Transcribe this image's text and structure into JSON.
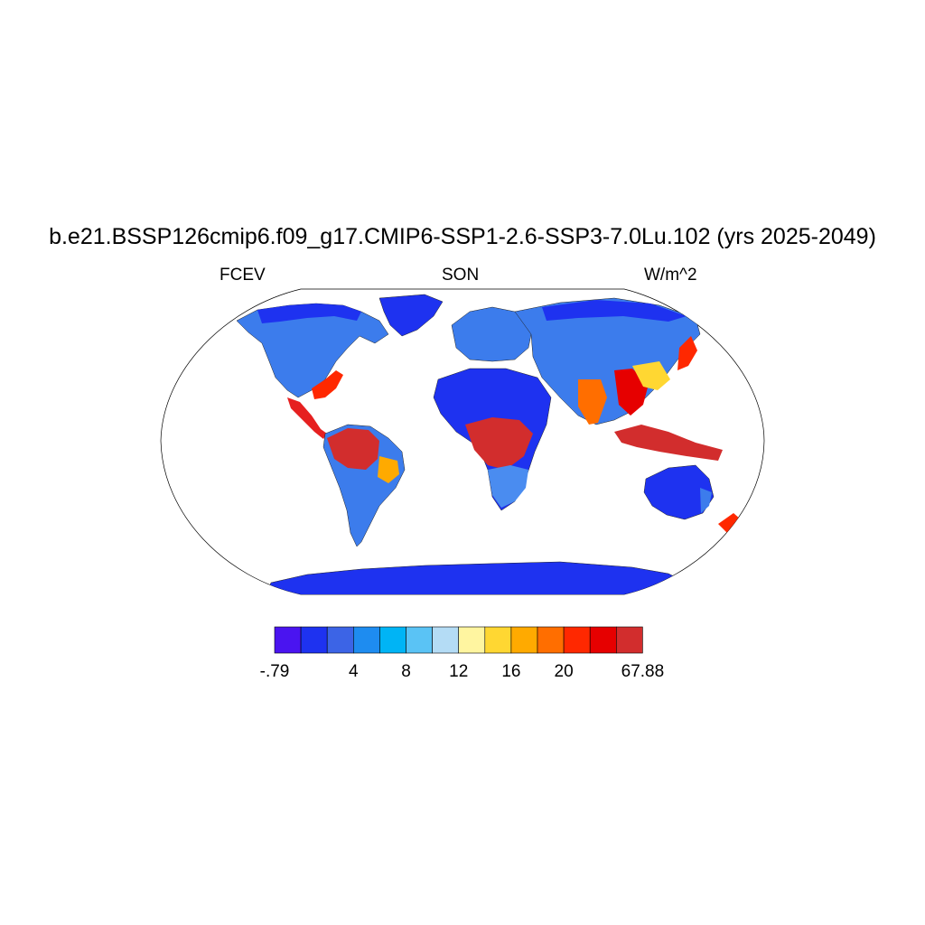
{
  "header": {
    "title": "b.e21.BSSP126cmip6.f09_g17.CMIP6-SSP1-2.6-SSP3-7.0Lu.102 (yrs 2025-2049)",
    "left_label": "FCEV",
    "center_label": "SON",
    "right_label": "W/m^2"
  },
  "map": {
    "projection": "Robinson",
    "land_fill_colors": {
      "low": "#1E3CF0",
      "mid": "#4A8CF0",
      "tropical": "#D42828",
      "warm": "#FF7A00"
    }
  },
  "colorbar": {
    "colors": [
      "#4A14F0",
      "#1E32F0",
      "#3C64E6",
      "#1E8CF0",
      "#00B4F5",
      "#5AC3F5",
      "#B4DCF5",
      "#FFF5A0",
      "#FFD732",
      "#FFAA00",
      "#FF6E00",
      "#FF2800",
      "#E60000",
      "#D22D2D"
    ],
    "labels": [
      {
        "text": "-.79",
        "index": 0
      },
      {
        "text": "4",
        "index": 3
      },
      {
        "text": "8",
        "index": 5
      },
      {
        "text": "12",
        "index": 7
      },
      {
        "text": "16",
        "index": 9
      },
      {
        "text": "20",
        "index": 11
      },
      {
        "text": "67.88",
        "index": 14
      }
    ]
  }
}
